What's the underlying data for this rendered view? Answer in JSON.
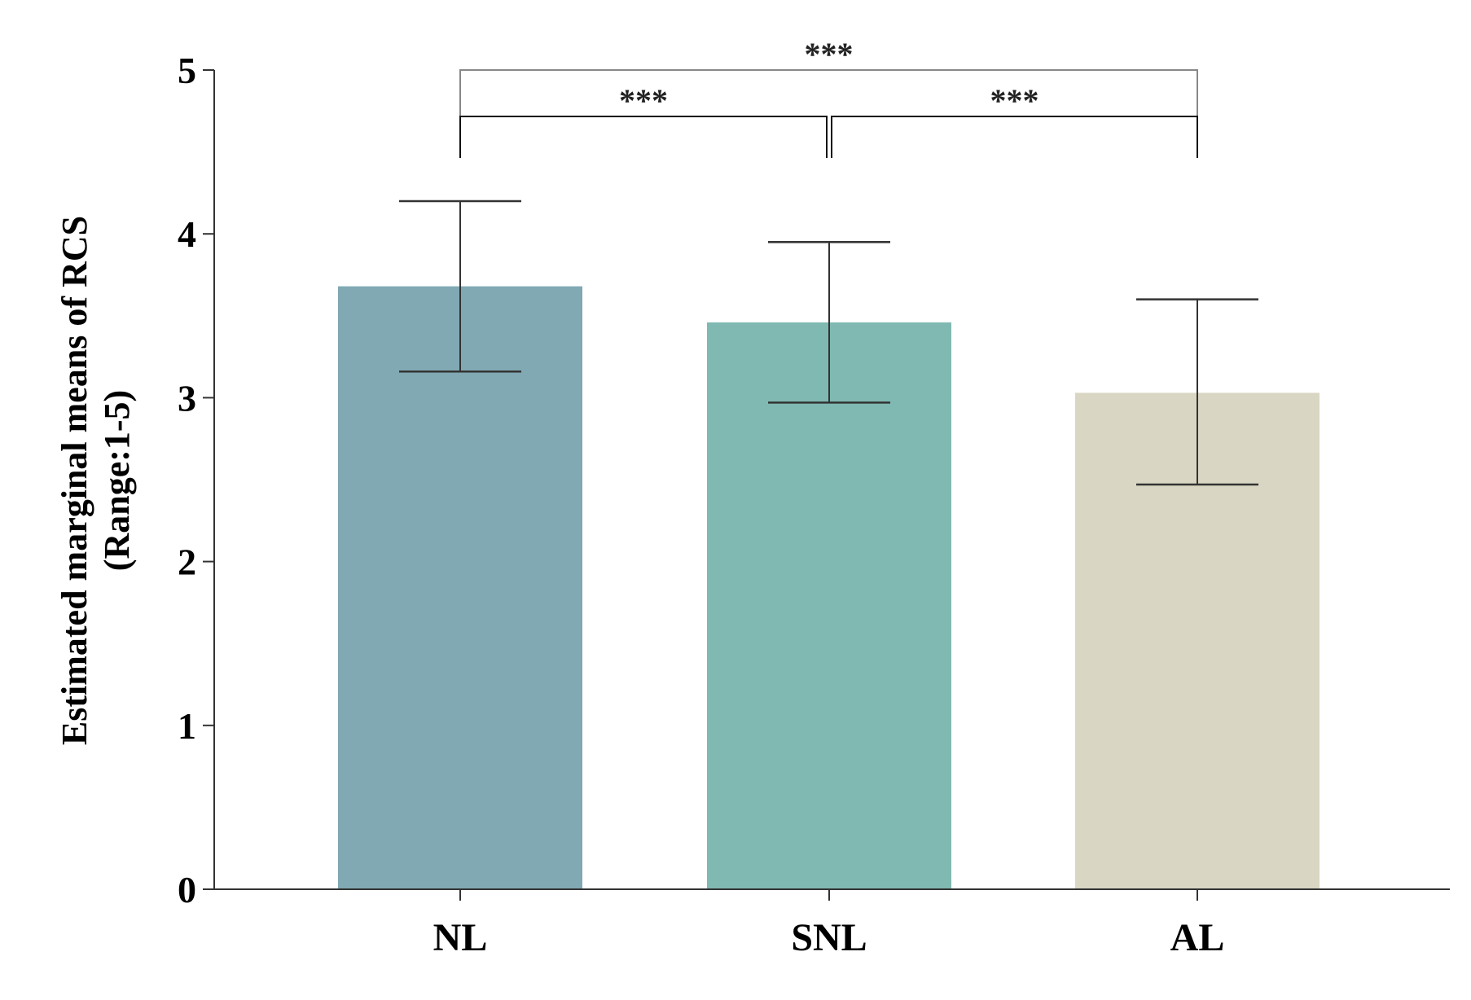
{
  "chart_data": {
    "type": "bar",
    "categories": [
      "NL",
      "SNL",
      "AL"
    ],
    "values": [
      3.68,
      3.46,
      3.03
    ],
    "error_bars": [
      {
        "low": 3.16,
        "high": 4.2
      },
      {
        "low": 2.97,
        "high": 3.95
      },
      {
        "low": 2.47,
        "high": 3.6
      }
    ],
    "bar_colors": [
      "#80a9b3",
      "#7fb9b2",
      "#d9d6c3"
    ],
    "ylabel_lines": [
      "Estimated marginal means of RCS",
      "(Range:1-5)"
    ],
    "xlabel": "",
    "ylim": [
      0,
      5
    ],
    "yticks": [
      "0",
      "1",
      "2",
      "3",
      "4",
      "5"
    ],
    "grid": false,
    "significance": [
      {
        "from": 0,
        "to": 2,
        "label": "***",
        "level": "upper"
      },
      {
        "from": 0,
        "to": 1,
        "label": "***",
        "level": "lower"
      },
      {
        "from": 1,
        "to": 2,
        "label": "***",
        "level": "lower"
      }
    ]
  }
}
